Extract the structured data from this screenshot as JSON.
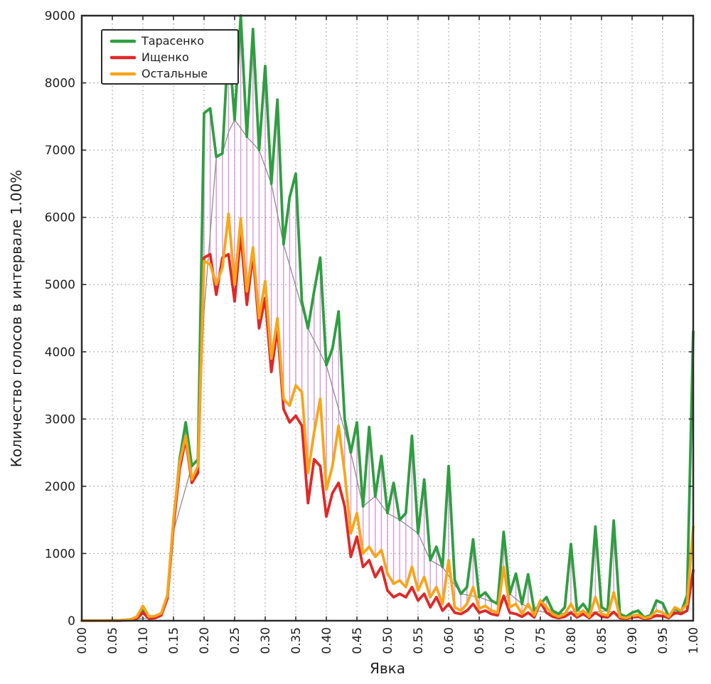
{
  "chart_data": {
    "type": "line",
    "title": "",
    "xlabel": "Явка",
    "ylabel": "Количество голосов в интервале 1.00%",
    "xlim": [
      0,
      1
    ],
    "ylim": [
      0,
      9000
    ],
    "x_start": 0,
    "x_step": 0.01,
    "grid": "dotted",
    "legend_position": "top-left",
    "xticks": [
      "0.00",
      "0.05",
      "0.10",
      "0.15",
      "0.20",
      "0.25",
      "0.30",
      "0.35",
      "0.40",
      "0.45",
      "0.50",
      "0.55",
      "0.60",
      "0.65",
      "0.70",
      "0.75",
      "0.80",
      "0.85",
      "0.90",
      "0.95",
      "1.00"
    ],
    "yticks": [
      "0",
      "1000",
      "2000",
      "3000",
      "4000",
      "5000",
      "6000",
      "7000",
      "8000",
      "9000"
    ],
    "series": [
      {
        "name": "Тарасенко",
        "color": "#2f9e41",
        "values": [
          0,
          0,
          0,
          0,
          0,
          5,
          5,
          10,
          20,
          40,
          150,
          40,
          50,
          90,
          350,
          1450,
          2400,
          2950,
          2300,
          2400,
          7550,
          7620,
          6900,
          6950,
          8650,
          7450,
          9000,
          7200,
          8800,
          7000,
          8250,
          6500,
          7750,
          5600,
          6300,
          6650,
          4750,
          4350,
          4900,
          5400,
          3800,
          4050,
          4600,
          3000,
          2500,
          2950,
          1700,
          2880,
          1850,
          2450,
          1600,
          2050,
          1500,
          1600,
          2750,
          1300,
          2100,
          900,
          1100,
          800,
          2300,
          600,
          400,
          500,
          1210,
          350,
          420,
          300,
          250,
          1320,
          400,
          700,
          250,
          690,
          150,
          250,
          350,
          150,
          100,
          200,
          1140,
          150,
          250,
          120,
          1400,
          200,
          150,
          1490,
          100,
          60,
          120,
          150,
          50,
          80,
          300,
          260,
          60,
          180,
          120,
          380,
          4300
        ]
      },
      {
        "name": "Ищенко",
        "color": "#e02828",
        "values": [
          0,
          0,
          0,
          0,
          0,
          0,
          0,
          5,
          10,
          30,
          120,
          30,
          40,
          80,
          330,
          1400,
          2250,
          2700,
          2050,
          2200,
          5400,
          5450,
          4850,
          5400,
          5450,
          4750,
          5750,
          4700,
          5450,
          4350,
          4800,
          3700,
          4350,
          3150,
          2950,
          3050,
          2900,
          1750,
          2400,
          2300,
          1550,
          1900,
          2050,
          1700,
          950,
          1250,
          800,
          900,
          650,
          800,
          450,
          350,
          400,
          350,
          500,
          300,
          400,
          200,
          350,
          150,
          250,
          120,
          100,
          150,
          250,
          120,
          150,
          100,
          80,
          370,
          120,
          100,
          60,
          120,
          50,
          280,
          120,
          60,
          40,
          60,
          120,
          50,
          100,
          40,
          120,
          60,
          50,
          130,
          40,
          30,
          50,
          60,
          30,
          40,
          80,
          70,
          40,
          120,
          100,
          150,
          750
        ]
      },
      {
        "name": "Остальные",
        "color": "#f7a51b",
        "values": [
          0,
          0,
          0,
          0,
          0,
          0,
          5,
          10,
          20,
          60,
          220,
          60,
          70,
          110,
          380,
          1500,
          2350,
          2750,
          2100,
          2300,
          5350,
          5300,
          5000,
          5250,
          6050,
          5000,
          5980,
          4900,
          5550,
          4500,
          5050,
          3900,
          4500,
          3300,
          3200,
          3500,
          3400,
          2200,
          2800,
          3300,
          1950,
          2300,
          2900,
          2200,
          1300,
          1600,
          1000,
          1100,
          950,
          1050,
          700,
          550,
          600,
          500,
          800,
          450,
          650,
          350,
          500,
          250,
          900,
          200,
          150,
          250,
          500,
          180,
          220,
          150,
          120,
          800,
          200,
          250,
          100,
          250,
          80,
          300,
          200,
          100,
          60,
          100,
          250,
          80,
          150,
          60,
          350,
          100,
          80,
          420,
          60,
          40,
          70,
          90,
          40,
          60,
          150,
          120,
          60,
          200,
          150,
          250,
          1400
        ]
      }
    ],
    "overlays": {
      "envelope_line": {
        "description": "thin gray line tracing the dips of the Тарасенко curve",
        "color": "#8c8c8c"
      },
      "comb": {
        "description": "thin vertical magenta hatch lines at each 1% turnout between Остальные and Тарасенко curves",
        "color": "#d98ad9"
      }
    },
    "frame_color": "#2b2b2b",
    "grid_color": "#a0a0a0"
  }
}
